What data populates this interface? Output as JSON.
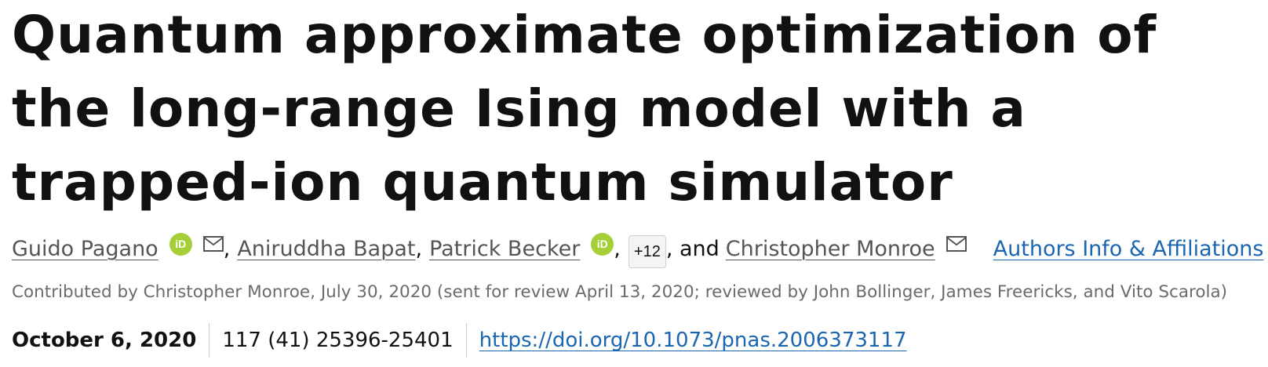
{
  "article": {
    "title": "Quantum approximate optimization of the long-range Ising model with a trapped-ion quantum simulator",
    "authors": [
      {
        "name": "Guido Pagano"
      },
      {
        "name": "Aniruddha Bapat"
      },
      {
        "name": "Patrick Becker"
      },
      {
        "name": "Christopher Monroe"
      }
    ],
    "more_authors_label": "+12",
    "comma": ",",
    "and_text": ", and",
    "orcid_label": "iD",
    "authors_info_link": "Authors Info & Affiliations",
    "contributed_text": "Contributed by Christopher Monroe, July 30, 2020 (sent for review April 13, 2020; reviewed by John Bollinger, James Freericks, and Vito Scarola)",
    "publication_date": "October 6, 2020",
    "citation": "117 (41) 25396-25401",
    "doi_url": "https://doi.org/10.1073/pnas.2006373117"
  },
  "colors": {
    "title": "#111111",
    "author_link": "#555555",
    "link_blue": "#1a66b0",
    "orcid_green": "#a6ce39",
    "muted_text": "#6b6b6b"
  },
  "icons": [
    "orcid-icon",
    "mail-icon"
  ]
}
